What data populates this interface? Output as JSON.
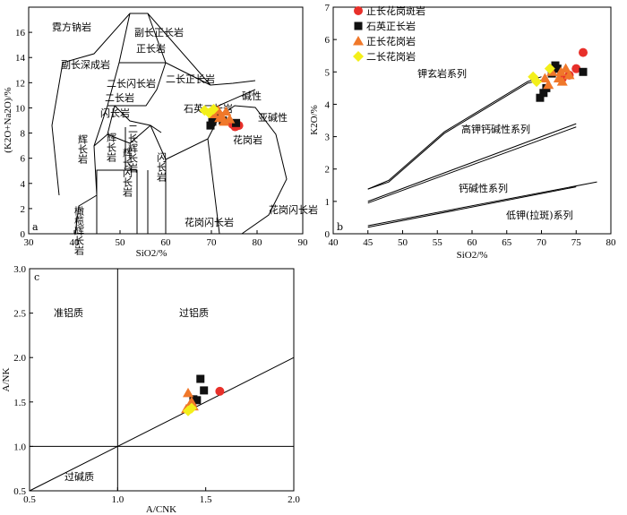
{
  "legend": {
    "items": [
      {
        "label": "正长花岗斑岩",
        "shape": "circle",
        "color": "#e8302a"
      },
      {
        "label": "石英正长岩",
        "shape": "square",
        "color": "#111111"
      },
      {
        "label": "正长花岗岩",
        "shape": "triangle",
        "color": "#f0782a"
      },
      {
        "label": "二长花岗岩",
        "shape": "diamond",
        "color": "#f3ef1a"
      }
    ]
  },
  "chart_data": [
    {
      "type": "scatter",
      "panel": "a",
      "xlabel": "SiO2/%",
      "ylabel": "(K2O+Na2O)/%",
      "xlim": [
        30,
        90
      ],
      "ylim": [
        0,
        18
      ],
      "xticks": [
        30,
        40,
        50,
        60,
        70,
        80,
        90
      ],
      "yticks": [
        0,
        2,
        4,
        6,
        8,
        10,
        12,
        14,
        16
      ],
      "field_labels": [
        "霓方钠岩",
        "副长深成岩",
        "副长正长岩",
        "正长岩",
        "二长正长岩",
        "二长闪长岩",
        "二长岩",
        "闪长岩",
        "辉长岩",
        "二长辉长岩",
        "辉长闪长岩",
        "辉长岩",
        "橄榄辉长岩",
        "闪长岩",
        "石英二长岩",
        "碱性",
        "亚碱性",
        "花岗岩",
        "花岗闪长岩",
        "花岗闪长岩"
      ],
      "series": [
        {
          "name": "正长花岗斑岩",
          "points": [
            [
              75.2,
              8.5
            ],
            [
              76.0,
              8.6
            ],
            [
              74.6,
              8.7
            ]
          ]
        },
        {
          "name": "石英正长岩",
          "points": [
            [
              69.8,
              8.6
            ],
            [
              70.2,
              8.9
            ],
            [
              71.0,
              9.4
            ],
            [
              75.4,
              8.8
            ],
            [
              72.5,
              9.0
            ]
          ]
        },
        {
          "name": "正长花岗岩",
          "points": [
            [
              70.5,
              9.5
            ],
            [
              71.5,
              9.8
            ],
            [
              72.3,
              9.3
            ],
            [
              73.2,
              9.7
            ],
            [
              74.0,
              9.1
            ],
            [
              72.8,
              8.9
            ],
            [
              71.8,
              9.2
            ]
          ]
        },
        {
          "name": "二长花岗岩",
          "points": [
            [
              68.5,
              9.8
            ],
            [
              69.5,
              9.6
            ],
            [
              70.5,
              9.9
            ]
          ]
        }
      ]
    },
    {
      "type": "scatter",
      "panel": "b",
      "xlabel": "SiO2/%",
      "ylabel": "K2O/%",
      "xlim": [
        40,
        80
      ],
      "ylim": [
        0,
        7
      ],
      "xticks": [
        40,
        45,
        50,
        55,
        60,
        65,
        70,
        75,
        80
      ],
      "yticks": [
        0,
        1,
        2,
        3,
        4,
        5,
        6,
        7
      ],
      "series_labels": [
        "钾玄岩系列",
        "高钾钙碱性系列",
        "钙碱性系列",
        "低钾(拉斑)系列"
      ],
      "series": [
        {
          "name": "正长花岗斑岩",
          "points": [
            [
              74.0,
              4.9
            ],
            [
              75.0,
              5.1
            ],
            [
              76.0,
              5.6
            ],
            [
              73.0,
              4.8
            ]
          ]
        },
        {
          "name": "石英正长岩",
          "points": [
            [
              69.8,
              4.2
            ],
            [
              70.3,
              4.35
            ],
            [
              70.7,
              4.5
            ],
            [
              72.0,
              5.2
            ],
            [
              72.3,
              5.1
            ],
            [
              76.0,
              5.0
            ],
            [
              71.5,
              4.95
            ]
          ]
        },
        {
          "name": "正长花岗岩",
          "points": [
            [
              70.5,
              4.8
            ],
            [
              71.5,
              5.0
            ],
            [
              72.5,
              4.8
            ],
            [
              73.0,
              4.7
            ],
            [
              73.5,
              5.1
            ],
            [
              74.0,
              4.9
            ],
            [
              71.0,
              4.6
            ],
            [
              72.8,
              5.0
            ]
          ]
        },
        {
          "name": "二长花岗岩",
          "points": [
            [
              68.8,
              4.85
            ],
            [
              69.3,
              4.7
            ],
            [
              71.2,
              5.1
            ]
          ]
        }
      ]
    },
    {
      "type": "scatter",
      "panel": "c",
      "xlabel": "A/CNK",
      "ylabel": "A/NK",
      "xlim": [
        0.5,
        2.0
      ],
      "ylim": [
        0.5,
        3.0
      ],
      "xticks": [
        0.5,
        1.0,
        1.5,
        2.0
      ],
      "yticks": [
        0.5,
        1.0,
        1.5,
        2.0,
        2.5,
        3.0
      ],
      "field_labels": [
        "准铝质",
        "过铝质",
        "过碱质"
      ],
      "series": [
        {
          "name": "正长花岗斑岩",
          "points": [
            [
              1.58,
              1.62
            ]
          ]
        },
        {
          "name": "石英正长岩",
          "points": [
            [
              1.47,
              1.76
            ],
            [
              1.49,
              1.63
            ],
            [
              1.45,
              1.52
            ],
            [
              1.43,
              1.53
            ]
          ]
        },
        {
          "name": "正长花岗岩",
          "points": [
            [
              1.4,
              1.6
            ],
            [
              1.41,
              1.47
            ],
            [
              1.43,
              1.45
            ],
            [
              1.39,
              1.42
            ],
            [
              1.42,
              1.5
            ]
          ]
        },
        {
          "name": "二长花岗岩",
          "points": [
            [
              1.4,
              1.4
            ],
            [
              1.42,
              1.43
            ]
          ]
        }
      ]
    }
  ]
}
